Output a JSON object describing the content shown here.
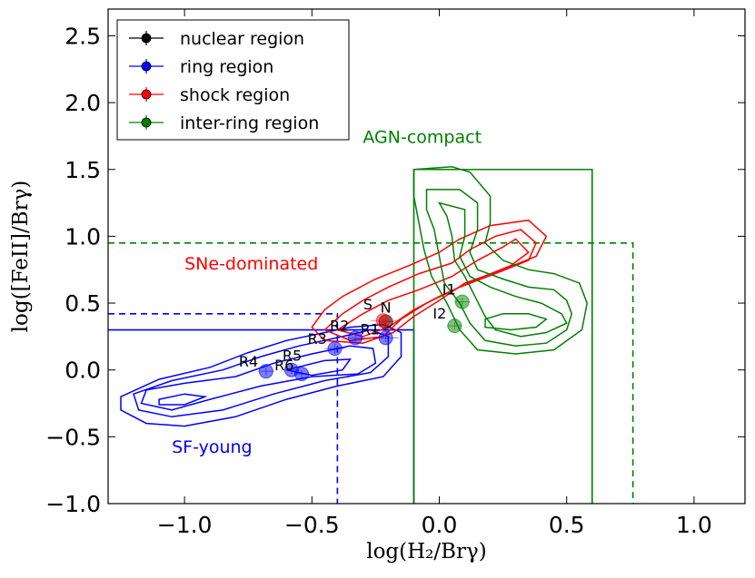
{
  "chart_data": {
    "type": "scatter",
    "xlabel": "log(H₂/Brγ)",
    "ylabel": "log([FeII]/Brγ)",
    "xlim": [
      -1.3,
      1.2
    ],
    "ylim": [
      -1.0,
      2.7
    ],
    "x_ticks": [
      -1.0,
      -0.5,
      0.0,
      0.5,
      1.0
    ],
    "x_tick_labels": [
      "−1.0",
      "−0.5",
      "0.0",
      "0.5",
      "1.0"
    ],
    "y_ticks": [
      -1.0,
      -0.5,
      0.0,
      0.5,
      1.0,
      1.5,
      2.0,
      2.5
    ],
    "y_tick_labels": [
      "−1.0",
      "−0.5",
      "0.0",
      "0.5",
      "1.0",
      "1.5",
      "2.0",
      "2.5"
    ],
    "legend": {
      "position": "top-left",
      "entries": [
        {
          "label": "nuclear region",
          "color": "#000000"
        },
        {
          "label": "ring region",
          "color": "#0000ff"
        },
        {
          "label": "shock region",
          "color": "#ff0000"
        },
        {
          "label": "inter-ring region",
          "color": "#008000"
        }
      ]
    },
    "region_labels": [
      {
        "text": "AGN-compact",
        "color": "#008000",
        "x": -0.3,
        "y": 1.7
      },
      {
        "text": "SNe-dominated",
        "color": "#ff0000",
        "x": -1.0,
        "y": 0.75
      },
      {
        "text": "SF-young",
        "color": "#0000ff",
        "x": -1.05,
        "y": -0.62
      }
    ],
    "boxes": [
      {
        "name": "sf-young-solid",
        "color": "#0000ff",
        "dash": false,
        "x": [
          -1.3,
          -0.1
        ],
        "y": [
          -1.0,
          0.3
        ]
      },
      {
        "name": "sf-young-dashed",
        "color": "#0000ff",
        "dash": true,
        "x": [
          -1.3,
          -0.4
        ],
        "y": [
          -1.0,
          0.42
        ]
      },
      {
        "name": "agn-solid",
        "color": "#008000",
        "dash": false,
        "x": [
          -0.1,
          0.6
        ],
        "y": [
          -1.0,
          1.5
        ]
      },
      {
        "name": "agn-dashed",
        "color": "#008000",
        "dash": true,
        "x": [
          -1.3,
          0.76
        ],
        "y": [
          -1.0,
          0.95
        ]
      }
    ],
    "contours": [
      {
        "color": "#0000ff",
        "points": [
          [
            -1.15,
            -0.15
          ],
          [
            -1.0,
            -0.1
          ],
          [
            -0.8,
            -0.05
          ],
          [
            -0.65,
            0.05
          ],
          [
            -0.5,
            0.12
          ],
          [
            -0.35,
            0.18
          ],
          [
            -0.26,
            0.16
          ],
          [
            -0.25,
            0.05
          ],
          [
            -0.32,
            -0.03
          ],
          [
            -0.5,
            -0.05
          ],
          [
            -0.7,
            -0.12
          ],
          [
            -0.9,
            -0.22
          ],
          [
            -1.05,
            -0.3
          ],
          [
            -1.17,
            -0.25
          ]
        ]
      },
      {
        "color": "#0000ff",
        "points": [
          [
            -1.2,
            -0.18
          ],
          [
            -1.05,
            -0.08
          ],
          [
            -0.85,
            0.0
          ],
          [
            -0.7,
            0.1
          ],
          [
            -0.55,
            0.18
          ],
          [
            -0.38,
            0.25
          ],
          [
            -0.27,
            0.3
          ],
          [
            -0.2,
            0.25
          ],
          [
            -0.2,
            0.1
          ],
          [
            -0.27,
            -0.02
          ],
          [
            -0.45,
            -0.08
          ],
          [
            -0.65,
            -0.18
          ],
          [
            -0.85,
            -0.3
          ],
          [
            -1.05,
            -0.35
          ],
          [
            -1.18,
            -0.3
          ]
        ]
      },
      {
        "color": "#0000ff",
        "points": [
          [
            -1.25,
            -0.2
          ],
          [
            -1.1,
            -0.07
          ],
          [
            -0.9,
            0.02
          ],
          [
            -0.75,
            0.13
          ],
          [
            -0.6,
            0.22
          ],
          [
            -0.45,
            0.28
          ],
          [
            -0.35,
            0.32
          ],
          [
            -0.22,
            0.34
          ],
          [
            -0.15,
            0.28
          ],
          [
            -0.15,
            0.1
          ],
          [
            -0.22,
            -0.05
          ],
          [
            -0.4,
            -0.12
          ],
          [
            -0.6,
            -0.22
          ],
          [
            -0.8,
            -0.35
          ],
          [
            -1.0,
            -0.42
          ],
          [
            -1.15,
            -0.4
          ],
          [
            -1.25,
            -0.3
          ]
        ]
      },
      {
        "color": "#0000ff",
        "points": [
          [
            -1.1,
            -0.22
          ],
          [
            -1.0,
            -0.18
          ],
          [
            -0.92,
            -0.2
          ],
          [
            -1.0,
            -0.26
          ],
          [
            -1.1,
            -0.26
          ]
        ]
      },
      {
        "color": "#0000ff",
        "points": [
          [
            -0.6,
            0.0
          ],
          [
            -0.45,
            0.07
          ],
          [
            -0.35,
            0.08
          ],
          [
            -0.38,
            0.0
          ],
          [
            -0.5,
            -0.04
          ]
        ]
      },
      {
        "color": "#ff0000",
        "points": [
          [
            -0.4,
            0.3
          ],
          [
            -0.3,
            0.42
          ],
          [
            -0.2,
            0.52
          ],
          [
            -0.08,
            0.6
          ],
          [
            0.05,
            0.7
          ],
          [
            0.15,
            0.82
          ],
          [
            0.25,
            0.92
          ],
          [
            0.3,
            0.98
          ],
          [
            0.35,
            0.88
          ],
          [
            0.28,
            0.78
          ],
          [
            0.15,
            0.68
          ],
          [
            0.0,
            0.55
          ],
          [
            -0.1,
            0.45
          ],
          [
            -0.2,
            0.32
          ],
          [
            -0.3,
            0.25
          ]
        ]
      },
      {
        "color": "#ff0000",
        "points": [
          [
            -0.45,
            0.3
          ],
          [
            -0.38,
            0.42
          ],
          [
            -0.3,
            0.52
          ],
          [
            -0.2,
            0.62
          ],
          [
            -0.08,
            0.72
          ],
          [
            0.05,
            0.8
          ],
          [
            0.12,
            0.9
          ],
          [
            0.22,
            1.0
          ],
          [
            0.32,
            1.05
          ],
          [
            0.38,
            0.95
          ],
          [
            0.35,
            0.82
          ],
          [
            0.22,
            0.72
          ],
          [
            0.08,
            0.62
          ],
          [
            -0.05,
            0.5
          ],
          [
            -0.15,
            0.38
          ],
          [
            -0.22,
            0.25
          ],
          [
            -0.35,
            0.22
          ]
        ]
      },
      {
        "color": "#ff0000",
        "points": [
          [
            -0.5,
            0.32
          ],
          [
            -0.45,
            0.45
          ],
          [
            -0.38,
            0.55
          ],
          [
            -0.25,
            0.68
          ],
          [
            -0.12,
            0.78
          ],
          [
            0.0,
            0.88
          ],
          [
            0.08,
            0.98
          ],
          [
            0.2,
            1.08
          ],
          [
            0.35,
            1.12
          ],
          [
            0.42,
            1.0
          ],
          [
            0.38,
            0.85
          ],
          [
            0.25,
            0.75
          ],
          [
            0.1,
            0.65
          ],
          [
            0.0,
            0.52
          ],
          [
            -0.1,
            0.4
          ],
          [
            -0.18,
            0.28
          ],
          [
            -0.3,
            0.2
          ],
          [
            -0.45,
            0.22
          ]
        ]
      },
      {
        "color": "#008000",
        "points": [
          [
            0.0,
            1.25
          ],
          [
            0.1,
            1.2
          ],
          [
            0.1,
            1.0
          ],
          [
            0.08,
            0.85
          ],
          [
            0.12,
            0.7
          ],
          [
            0.2,
            0.62
          ],
          [
            0.3,
            0.55
          ],
          [
            0.4,
            0.5
          ],
          [
            0.48,
            0.42
          ],
          [
            0.5,
            0.35
          ],
          [
            0.42,
            0.28
          ],
          [
            0.32,
            0.25
          ],
          [
            0.22,
            0.3
          ],
          [
            0.18,
            0.4
          ],
          [
            0.14,
            0.55
          ],
          [
            0.1,
            0.7
          ],
          [
            0.06,
            0.82
          ],
          [
            0.05,
            1.0
          ],
          [
            0.03,
            1.15
          ]
        ]
      },
      {
        "color": "#008000",
        "points": [
          [
            -0.05,
            1.35
          ],
          [
            0.08,
            1.35
          ],
          [
            0.15,
            1.25
          ],
          [
            0.15,
            1.05
          ],
          [
            0.12,
            0.88
          ],
          [
            0.15,
            0.75
          ],
          [
            0.25,
            0.68
          ],
          [
            0.35,
            0.62
          ],
          [
            0.45,
            0.6
          ],
          [
            0.5,
            0.52
          ],
          [
            0.52,
            0.42
          ],
          [
            0.5,
            0.3
          ],
          [
            0.42,
            0.2
          ],
          [
            0.3,
            0.18
          ],
          [
            0.18,
            0.22
          ],
          [
            0.12,
            0.35
          ],
          [
            0.08,
            0.5
          ],
          [
            0.02,
            0.65
          ],
          [
            0.0,
            0.85
          ],
          [
            -0.02,
            1.05
          ],
          [
            -0.05,
            1.2
          ]
        ]
      },
      {
        "color": "#008000",
        "points": [
          [
            -0.1,
            1.5
          ],
          [
            0.05,
            1.52
          ],
          [
            0.12,
            1.48
          ],
          [
            0.2,
            1.3
          ],
          [
            0.2,
            1.1
          ],
          [
            0.18,
            0.95
          ],
          [
            0.25,
            0.82
          ],
          [
            0.35,
            0.75
          ],
          [
            0.45,
            0.72
          ],
          [
            0.55,
            0.65
          ],
          [
            0.58,
            0.5
          ],
          [
            0.56,
            0.3
          ],
          [
            0.45,
            0.15
          ],
          [
            0.3,
            0.12
          ],
          [
            0.15,
            0.15
          ],
          [
            0.08,
            0.3
          ],
          [
            0.03,
            0.5
          ],
          [
            -0.03,
            0.7
          ],
          [
            -0.06,
            0.9
          ],
          [
            -0.08,
            1.1
          ],
          [
            -0.1,
            1.3
          ]
        ]
      },
      {
        "color": "#008000",
        "points": [
          [
            0.18,
            0.32
          ],
          [
            0.28,
            0.3
          ],
          [
            0.38,
            0.32
          ],
          [
            0.42,
            0.38
          ],
          [
            0.35,
            0.42
          ],
          [
            0.25,
            0.42
          ],
          [
            0.18,
            0.38
          ]
        ]
      }
    ],
    "points": [
      {
        "label": "N",
        "x": -0.21,
        "y": 0.36,
        "color": "#000000",
        "xerr": 0.03,
        "yerr": 0.03,
        "label_dx": -6,
        "label_dy": -10
      },
      {
        "label": "S",
        "x": -0.22,
        "y": 0.37,
        "color": "#ff0000",
        "xerr": 0.05,
        "yerr": 0.03,
        "label_dx": -22,
        "label_dy": -12
      },
      {
        "label": "R1",
        "x": -0.21,
        "y": 0.24,
        "color": "#0000ff",
        "xerr": 0.05,
        "yerr": 0.03,
        "label_dx": -28,
        "label_dy": -4
      },
      {
        "label": "R2",
        "x": -0.33,
        "y": 0.24,
        "color": "#0000ff",
        "xerr": 0.04,
        "yerr": 0.03,
        "label_dx": -28,
        "label_dy": -8
      },
      {
        "label": "R3",
        "x": -0.41,
        "y": 0.16,
        "color": "#0000ff",
        "xerr": 0.04,
        "yerr": 0.04,
        "label_dx": -30,
        "label_dy": -5
      },
      {
        "label": "R4",
        "x": -0.68,
        "y": -0.01,
        "color": "#0000ff",
        "xerr": 0.03,
        "yerr": 0.03,
        "label_dx": -30,
        "label_dy": -5
      },
      {
        "label": "R5",
        "x": -0.58,
        "y": 0.0,
        "color": "#0000ff",
        "xerr": 0.03,
        "yerr": 0.03,
        "label_dx": -10,
        "label_dy": -10
      },
      {
        "label": "R6",
        "x": -0.54,
        "y": -0.03,
        "color": "#0000ff",
        "xerr": 0.03,
        "yerr": 0.03,
        "label_dx": -30,
        "label_dy": -4
      },
      {
        "label": "I1",
        "x": 0.09,
        "y": 0.51,
        "color": "#008000",
        "xerr": 0.03,
        "yerr": 0.03,
        "label_dx": -22,
        "label_dy": -8
      },
      {
        "label": "I2",
        "x": 0.06,
        "y": 0.33,
        "color": "#008000",
        "xerr": 0.03,
        "yerr": 0.03,
        "label_dx": -24,
        "label_dy": -8
      }
    ]
  }
}
